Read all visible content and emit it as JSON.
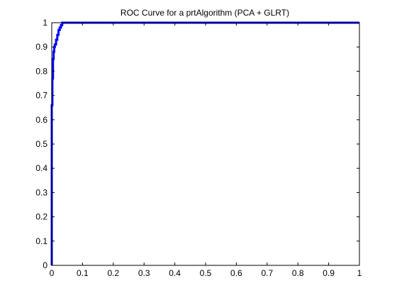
{
  "chart_data": {
    "type": "line",
    "title": "ROC Curve for a prtAlgorithm (PCA + GLRT)",
    "xlabel": "",
    "ylabel": "",
    "xlim": [
      0,
      1
    ],
    "ylim": [
      0,
      1
    ],
    "xticks": [
      "0",
      "0.1",
      "0.2",
      "0.3",
      "0.4",
      "0.5",
      "0.6",
      "0.7",
      "0.8",
      "0.9",
      "1"
    ],
    "yticks": [
      "0",
      "0.1",
      "0.2",
      "0.3",
      "0.4",
      "0.5",
      "0.6",
      "0.7",
      "0.8",
      "0.9",
      "1"
    ],
    "grid": false,
    "series": [
      {
        "color": "#0000ff",
        "x": [
          0,
          0,
          0.002,
          0.002,
          0.004,
          0.004,
          0.006,
          0.006,
          0.008,
          0.008,
          0.01,
          0.01,
          0.014,
          0.014,
          0.018,
          0.018,
          0.022,
          0.022,
          0.026,
          0.026,
          0.03,
          0.03,
          0.034,
          0.034,
          0.04,
          0.04,
          1
        ],
        "y": [
          0,
          0.66,
          0.66,
          0.77,
          0.77,
          0.85,
          0.85,
          0.88,
          0.88,
          0.9,
          0.9,
          0.91,
          0.91,
          0.93,
          0.93,
          0.95,
          0.95,
          0.97,
          0.97,
          0.98,
          0.98,
          0.99,
          0.99,
          1,
          1,
          1,
          1
        ]
      }
    ]
  }
}
